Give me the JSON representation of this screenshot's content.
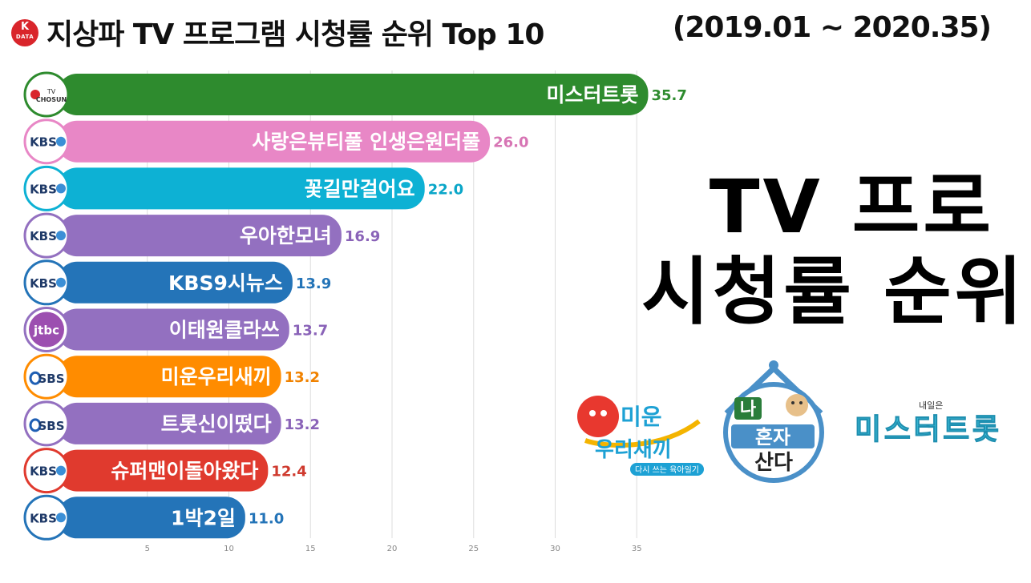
{
  "header": {
    "brand_k": "K",
    "brand_text": "DATA",
    "title": "지상파 TV 프로그램 시청률 순위 Top 10",
    "period": "(2019.01 ~ 2020.35)"
  },
  "overlay": {
    "line1": "TV 프로",
    "line2": "시청률 순위"
  },
  "logos": {
    "miun_line1": "미운",
    "miun_line2": "우리새끼",
    "miun_sub": "다시 쓰는 육아일기",
    "nahonja_1": "나",
    "nahonja_2": "혼자",
    "nahonja_3": "산다",
    "misstrot_small": "내일은",
    "misstrot_big": "미스터트롯"
  },
  "chart_data": {
    "type": "bar",
    "orientation": "horizontal",
    "categories": [
      "미스터트롯",
      "사랑은뷰티풀 인생은원더풀",
      "꽃길만걸어요",
      "우아한모녀",
      "KBS9시뉴스",
      "이태원클라쓰",
      "미운우리새끼",
      "트롯신이떴다",
      "슈퍼맨이돌아왔다",
      "1박2일"
    ],
    "values": [
      35.7,
      26.0,
      22.0,
      16.9,
      13.9,
      13.7,
      13.2,
      13.2,
      12.4,
      11.0
    ],
    "value_labels": [
      "35.7",
      "26.0",
      "22.0",
      "16.9",
      "13.9",
      "13.7",
      "13.2",
      "13.2",
      "12.4",
      "11.0"
    ],
    "channels": [
      "TV CHOSUN",
      "KBS",
      "KBS",
      "KBS",
      "KBS",
      "jtbc",
      "SBS",
      "SBS",
      "KBS",
      "KBS"
    ],
    "colors": [
      "#2e8b2e",
      "#e887c6",
      "#0db1d4",
      "#9370c0",
      "#2474b8",
      "#9370c0",
      "#ff8c00",
      "#9370c0",
      "#e03a2e",
      "#2474b8"
    ],
    "label_colors": [
      "#2e8b2e",
      "#d775b4",
      "#0aa6c8",
      "#8a63b8",
      "#2474b8",
      "#8a63b8",
      "#f08200",
      "#8a63b8",
      "#cf3a2e",
      "#2474b8"
    ],
    "xticks": [
      5,
      10,
      15,
      20,
      25,
      30,
      35
    ],
    "xlim": [
      0,
      35.7
    ],
    "grid": true
  }
}
